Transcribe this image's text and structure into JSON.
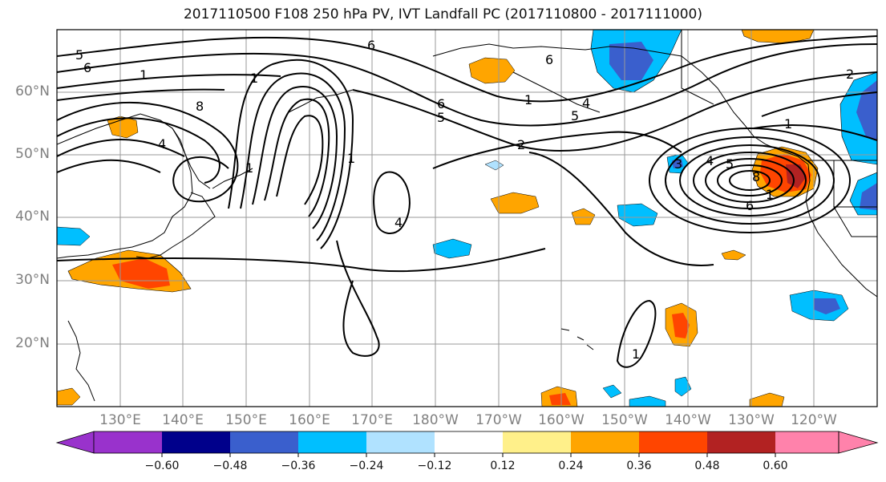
{
  "title": "2017110500 F108 250 hPa PV, IVT Landfall PC (2017110800 - 2017111000)",
  "map": {
    "lat_labels": [
      "60°N",
      "50°N",
      "40°N",
      "30°N",
      "20°N"
    ],
    "lon_labels": [
      "130°E",
      "140°E",
      "150°E",
      "160°E",
      "170°E",
      "180°W",
      "170°W",
      "160°W",
      "150°W",
      "140°W",
      "130°W",
      "120°W"
    ],
    "contour_labels": [
      "5",
      "6",
      "1",
      "8",
      "4",
      "1",
      "6",
      "6",
      "5",
      "2",
      "1",
      "4",
      "5",
      "6",
      "1",
      "3",
      "4",
      "5",
      "6",
      "8",
      "1",
      "4",
      "1",
      "1",
      "2",
      "1"
    ]
  },
  "colorbar": {
    "tick_labels": [
      "−0.60",
      "−0.48",
      "−0.36",
      "−0.24",
      "−0.12",
      "0.12",
      "0.24",
      "0.36",
      "0.48",
      "0.60"
    ],
    "colors": [
      "#9932cc",
      "#00008b",
      "#3a5fcd",
      "#00bfff",
      "#b0e2ff",
      "#ffffff",
      "#fff08a",
      "#ffa500",
      "#ff4500",
      "#b22222",
      "#ff82ab"
    ]
  }
}
